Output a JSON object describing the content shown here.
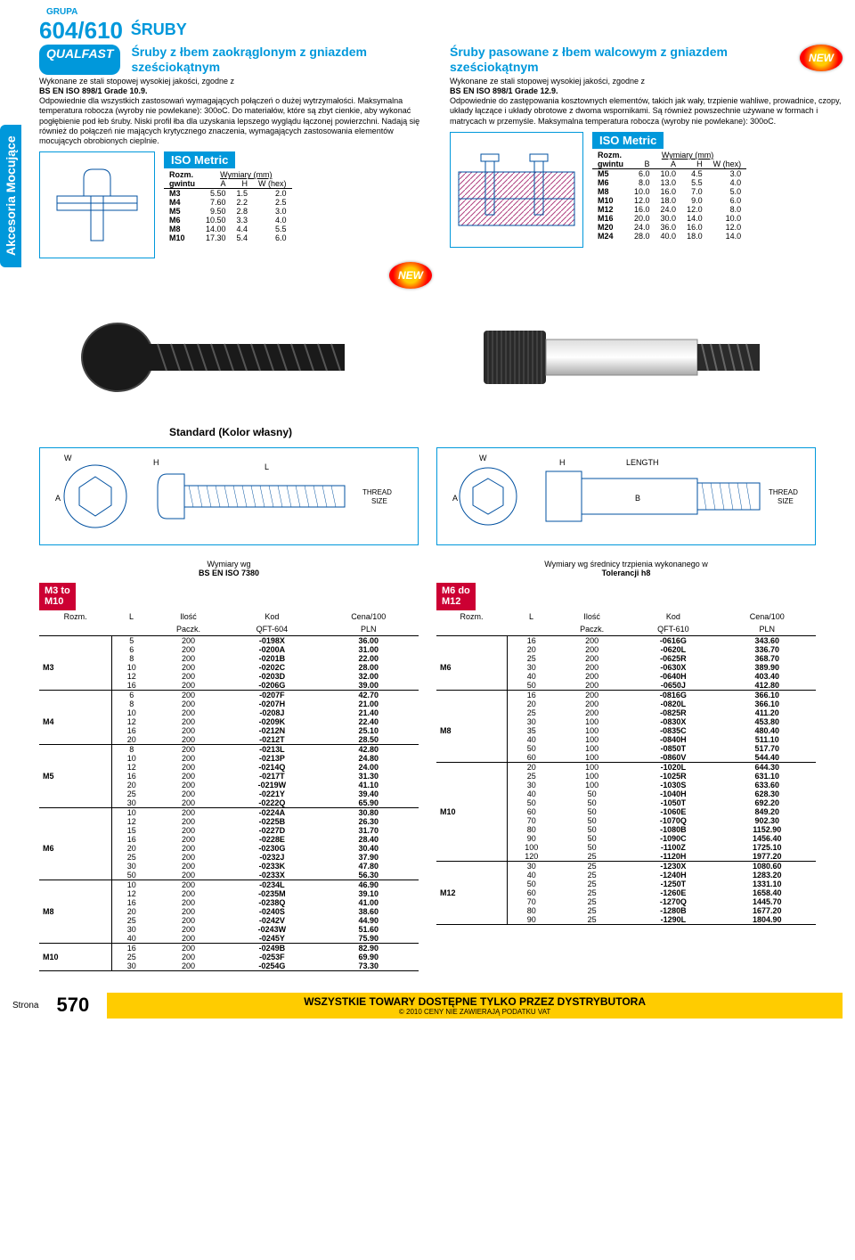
{
  "sidebar": "Akcesoria Mocujące",
  "grupa": "GRUPA",
  "groupnum": "604/610",
  "sruby": "ŚRUBY",
  "qualfast": "QUALFAST",
  "new": "NEW",
  "left": {
    "title": "Śruby z łbem zaokrąglonym z gniazdem sześciokątnym",
    "p1": "Wykonane ze stali stopowej wysokiej jakości, zgodne z",
    "std": "BS EN ISO 898/1 Grade 10.9.",
    "p2": "Odpowiednie dla wszystkich zastosowań wymagających połączeń o dużej wytrzymałości. Maksymalna temperatura robocza (wyroby nie powlekane): 300oC. Do materiałów, które są zbyt cienkie, aby wykonać pogłębienie pod łeb śruby. Niski profil łba dla uzyskania lepszego wyglądu łączonej powierzchni. Nadają się również do połączeń nie mających krytycznego znaczenia, wymagających zastosowania elementów mocujących obrobionych cieplnie.",
    "iso": "ISO Metric",
    "dimhead": {
      "r": "Rozm.",
      "g": "gwintu",
      "w": "Wymiary (mm)",
      "a": "A",
      "h": "H",
      "wx": "W (hex)"
    },
    "dims": [
      [
        "M3",
        "5.50",
        "1.5",
        "2.0"
      ],
      [
        "M4",
        "7.60",
        "2.2",
        "2.5"
      ],
      [
        "M5",
        "9.50",
        "2.8",
        "3.0"
      ],
      [
        "M6",
        "10.50",
        "3.3",
        "4.0"
      ],
      [
        "M8",
        "14.00",
        "4.4",
        "5.5"
      ],
      [
        "M10",
        "17.30",
        "5.4",
        "6.0"
      ]
    ],
    "stdkolor": "Standard (Kolor własny)",
    "spec1": "Wymiary wg",
    "spec2": "BS EN ISO 7380",
    "range": "M3 to\nM10",
    "th": {
      "rozm": "Rozm.",
      "l": "L",
      "ilosc": "Ilość",
      "paczk": "Paczk.",
      "kod": "Kod",
      "kodpre": "QFT-604",
      "cena": "Cena/100",
      "pln": "PLN"
    },
    "rows": [
      {
        "sz": "M3",
        "r": [
          [
            "5",
            "200",
            "-0198X",
            "36.00"
          ],
          [
            "6",
            "200",
            "-0200A",
            "31.00"
          ],
          [
            "8",
            "200",
            "-0201B",
            "22.00"
          ],
          [
            "10",
            "200",
            "-0202C",
            "28.00"
          ],
          [
            "12",
            "200",
            "-0203D",
            "32.00"
          ],
          [
            "16",
            "200",
            "-0206G",
            "39.00"
          ]
        ]
      },
      {
        "sz": "M4",
        "r": [
          [
            "6",
            "200",
            "-0207F",
            "42.70"
          ],
          [
            "8",
            "200",
            "-0207H",
            "21.00"
          ],
          [
            "10",
            "200",
            "-0208J",
            "21.40"
          ],
          [
            "12",
            "200",
            "-0209K",
            "22.40"
          ],
          [
            "16",
            "200",
            "-0212N",
            "25.10"
          ],
          [
            "20",
            "200",
            "-0212T",
            "28.50"
          ]
        ]
      },
      {
        "sz": "M5",
        "r": [
          [
            "8",
            "200",
            "-0213L",
            "42.80"
          ],
          [
            "10",
            "200",
            "-0213P",
            "24.80"
          ],
          [
            "12",
            "200",
            "-0214Q",
            "24.00"
          ],
          [
            "16",
            "200",
            "-0217T",
            "31.30"
          ],
          [
            "20",
            "200",
            "-0219W",
            "41.10"
          ],
          [
            "25",
            "200",
            "-0221Y",
            "39.40"
          ],
          [
            "30",
            "200",
            "-0222Q",
            "65.90"
          ]
        ]
      },
      {
        "sz": "M6",
        "r": [
          [
            "10",
            "200",
            "-0224A",
            "30.80"
          ],
          [
            "12",
            "200",
            "-0225B",
            "26.30"
          ],
          [
            "15",
            "200",
            "-0227D",
            "31.70"
          ],
          [
            "16",
            "200",
            "-0228E",
            "28.40"
          ],
          [
            "20",
            "200",
            "-0230G",
            "30.40"
          ],
          [
            "25",
            "200",
            "-0232J",
            "37.90"
          ],
          [
            "30",
            "200",
            "-0233K",
            "47.80"
          ],
          [
            "50",
            "200",
            "-0233X",
            "56.30"
          ]
        ]
      },
      {
        "sz": "M8",
        "r": [
          [
            "10",
            "200",
            "-0234L",
            "46.90"
          ],
          [
            "12",
            "200",
            "-0235M",
            "39.10"
          ],
          [
            "16",
            "200",
            "-0238Q",
            "41.00"
          ],
          [
            "20",
            "200",
            "-0240S",
            "38.60"
          ],
          [
            "25",
            "200",
            "-0242V",
            "44.90"
          ],
          [
            "30",
            "200",
            "-0243W",
            "51.60"
          ],
          [
            "40",
            "200",
            "-0245Y",
            "75.90"
          ]
        ]
      },
      {
        "sz": "M10",
        "r": [
          [
            "16",
            "200",
            "-0249B",
            "82.90"
          ],
          [
            "25",
            "200",
            "-0253F",
            "69.90"
          ],
          [
            "30",
            "200",
            "-0254G",
            "73.30"
          ]
        ]
      }
    ]
  },
  "right": {
    "title": "Śruby pasowane z łbem walcowym z gniazdem sześciokątnym",
    "p1": "Wykonane ze stali stopowej wysokiej jakości, zgodne z",
    "std": "BS EN ISO 898/1 Grade 12.9.",
    "p2": "Odpowiednie do zastępowania kosztownych elementów, takich jak wały, trzpienie wahliwe, prowadnice, czopy, układy łączące i układy obrotowe z dwoma wspornikami. Są również powszechnie używane w formach i matrycach w przemyśle. Maksymalna temperatura robocza (wyroby nie powlekane): 300oC.",
    "iso": "ISO Metric",
    "dimhead": {
      "r": "Rozm.",
      "g": "gwintu",
      "w": "Wymiary (mm)",
      "b": "B",
      "a": "A",
      "h": "H",
      "wx": "W (hex)"
    },
    "dims": [
      [
        "M5",
        "6.0",
        "10.0",
        "4.5",
        "3.0"
      ],
      [
        "M6",
        "8.0",
        "13.0",
        "5.5",
        "4.0"
      ],
      [
        "M8",
        "10.0",
        "16.0",
        "7.0",
        "5.0"
      ],
      [
        "M10",
        "12.0",
        "18.0",
        "9.0",
        "6.0"
      ],
      [
        "M12",
        "16.0",
        "24.0",
        "12.0",
        "8.0"
      ],
      [
        "M16",
        "20.0",
        "30.0",
        "14.0",
        "10.0"
      ],
      [
        "M20",
        "24.0",
        "36.0",
        "16.0",
        "12.0"
      ],
      [
        "M24",
        "28.0",
        "40.0",
        "18.0",
        "14.0"
      ]
    ],
    "spec1": "Wymiary wg średnicy trzpienia wykonanego w",
    "spec2": "Tolerancji h8",
    "range": "M6 do\nM12",
    "th": {
      "rozm": "Rozm.",
      "l": "L",
      "ilosc": "Ilość",
      "paczk": "Paczk.",
      "kod": "Kod",
      "kodpre": "QFT-610",
      "cena": "Cena/100",
      "pln": "PLN"
    },
    "rows": [
      {
        "sz": "M6",
        "r": [
          [
            "16",
            "200",
            "-0616G",
            "343.60"
          ],
          [
            "20",
            "200",
            "-0620L",
            "336.70"
          ],
          [
            "25",
            "200",
            "-0625R",
            "368.70"
          ],
          [
            "30",
            "200",
            "-0630X",
            "389.90"
          ],
          [
            "40",
            "200",
            "-0640H",
            "403.40"
          ],
          [
            "50",
            "200",
            "-0650J",
            "412.80"
          ]
        ]
      },
      {
        "sz": "M8",
        "r": [
          [
            "16",
            "200",
            "-0816G",
            "366.10"
          ],
          [
            "20",
            "200",
            "-0820L",
            "366.10"
          ],
          [
            "25",
            "200",
            "-0825R",
            "411.20"
          ],
          [
            "30",
            "100",
            "-0830X",
            "453.80"
          ],
          [
            "35",
            "100",
            "-0835C",
            "480.40"
          ],
          [
            "40",
            "100",
            "-0840H",
            "511.10"
          ],
          [
            "50",
            "100",
            "-0850T",
            "517.70"
          ],
          [
            "60",
            "100",
            "-0860V",
            "544.40"
          ]
        ]
      },
      {
        "sz": "M10",
        "r": [
          [
            "20",
            "100",
            "-1020L",
            "644.30"
          ],
          [
            "25",
            "100",
            "-1025R",
            "631.10"
          ],
          [
            "30",
            "100",
            "-1030S",
            "633.60"
          ],
          [
            "40",
            "50",
            "-1040H",
            "628.30"
          ],
          [
            "50",
            "50",
            "-1050T",
            "692.20"
          ],
          [
            "60",
            "50",
            "-1060E",
            "849.20"
          ],
          [
            "70",
            "50",
            "-1070Q",
            "902.30"
          ],
          [
            "80",
            "50",
            "-1080B",
            "1152.90"
          ],
          [
            "90",
            "50",
            "-1090C",
            "1456.40"
          ],
          [
            "100",
            "50",
            "-1100Z",
            "1725.10"
          ],
          [
            "120",
            "25",
            "-1120H",
            "1977.20"
          ]
        ]
      },
      {
        "sz": "M12",
        "r": [
          [
            "30",
            "25",
            "-1230X",
            "1080.60"
          ],
          [
            "40",
            "25",
            "-1240H",
            "1283.20"
          ],
          [
            "50",
            "25",
            "-1250T",
            "1331.10"
          ],
          [
            "60",
            "25",
            "-1260E",
            "1658.40"
          ],
          [
            "70",
            "25",
            "-1270Q",
            "1445.70"
          ],
          [
            "80",
            "25",
            "-1280B",
            "1677.20"
          ],
          [
            "90",
            "25",
            "-1290L",
            "1804.90"
          ]
        ]
      }
    ]
  },
  "footer": {
    "strona": "Strona",
    "page": "570",
    "dist": "WSZYSTKIE TOWARY DOSTĘPNE TYLKO PRZEZ DYSTRYBUTORA",
    "sub": "© 2010 CENY NIE ZAWIERAJĄ PODATKU VAT"
  }
}
